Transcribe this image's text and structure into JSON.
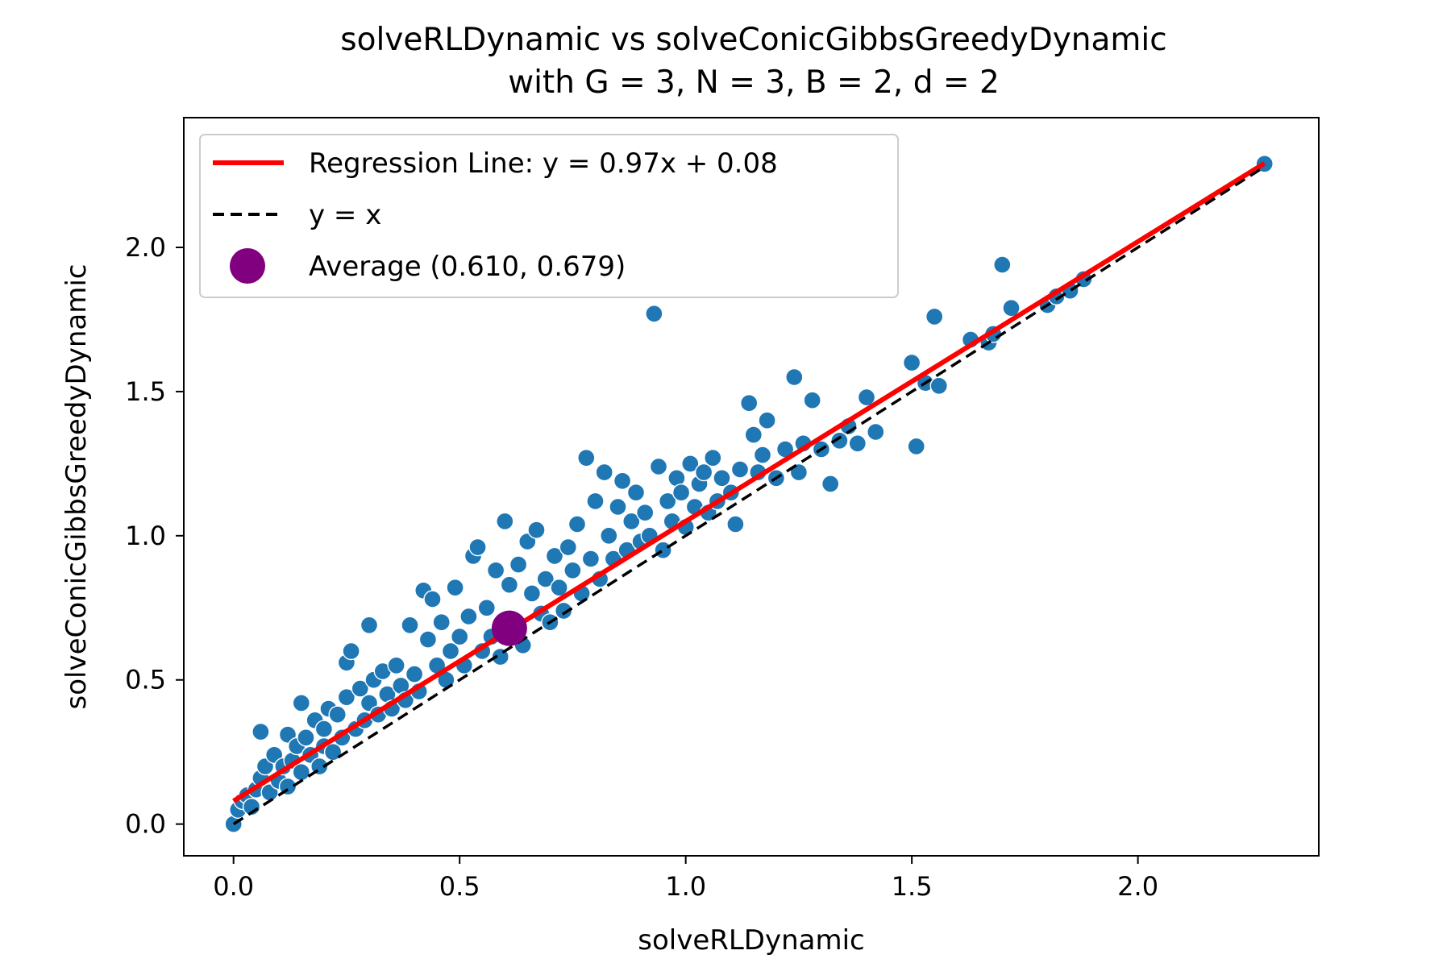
{
  "chart_data": {
    "type": "scatter",
    "title_line1": "solveRLDynamic vs solveConicGibbsGreedyDynamic",
    "title_line2": "with G = 3, N = 3, B = 2, d = 2",
    "xlabel": "solveRLDynamic",
    "ylabel": "solveConicGibbsGreedyDynamic",
    "xlim": [
      -0.11,
      2.4
    ],
    "ylim": [
      -0.11,
      2.45
    ],
    "xticks": [
      0.0,
      0.5,
      1.0,
      1.5,
      2.0
    ],
    "yticks": [
      0.0,
      0.5,
      1.0,
      1.5,
      2.0
    ],
    "xtick_labels": [
      "0.0",
      "0.5",
      "1.0",
      "1.5",
      "2.0"
    ],
    "ytick_labels": [
      "0.0",
      "0.5",
      "1.0",
      "1.5",
      "2.0"
    ],
    "grid": false,
    "legend_placement": "upper-left",
    "legend": {
      "regression_label": "Regression Line: y = 0.97x + 0.08",
      "identity_label": "y = x",
      "average_label": "Average (0.610, 0.679)"
    },
    "regression": {
      "slope": 0.97,
      "intercept": 0.08,
      "x_range": [
        0.0,
        2.28
      ],
      "color": "#ff0000"
    },
    "identity": {
      "x_range": [
        0.0,
        2.28
      ],
      "color": "#000000"
    },
    "average": {
      "x": 0.61,
      "y": 0.679,
      "color": "#800080"
    },
    "scatter_color": "#1f77b4",
    "points": [
      [
        0.0,
        0.0
      ],
      [
        0.01,
        0.05
      ],
      [
        0.02,
        0.08
      ],
      [
        0.03,
        0.1
      ],
      [
        0.04,
        0.06
      ],
      [
        0.05,
        0.12
      ],
      [
        0.06,
        0.16
      ],
      [
        0.06,
        0.32
      ],
      [
        0.07,
        0.2
      ],
      [
        0.08,
        0.11
      ],
      [
        0.09,
        0.24
      ],
      [
        0.1,
        0.15
      ],
      [
        0.11,
        0.2
      ],
      [
        0.12,
        0.31
      ],
      [
        0.12,
        0.13
      ],
      [
        0.13,
        0.22
      ],
      [
        0.14,
        0.27
      ],
      [
        0.15,
        0.42
      ],
      [
        0.15,
        0.18
      ],
      [
        0.16,
        0.3
      ],
      [
        0.17,
        0.24
      ],
      [
        0.18,
        0.36
      ],
      [
        0.19,
        0.2
      ],
      [
        0.2,
        0.33
      ],
      [
        0.2,
        0.27
      ],
      [
        0.21,
        0.4
      ],
      [
        0.22,
        0.25
      ],
      [
        0.23,
        0.38
      ],
      [
        0.24,
        0.3
      ],
      [
        0.25,
        0.56
      ],
      [
        0.25,
        0.44
      ],
      [
        0.26,
        0.6
      ],
      [
        0.27,
        0.33
      ],
      [
        0.28,
        0.47
      ],
      [
        0.29,
        0.36
      ],
      [
        0.3,
        0.69
      ],
      [
        0.3,
        0.42
      ],
      [
        0.31,
        0.5
      ],
      [
        0.32,
        0.38
      ],
      [
        0.33,
        0.53
      ],
      [
        0.34,
        0.45
      ],
      [
        0.35,
        0.4
      ],
      [
        0.36,
        0.55
      ],
      [
        0.37,
        0.48
      ],
      [
        0.38,
        0.43
      ],
      [
        0.39,
        0.69
      ],
      [
        0.4,
        0.52
      ],
      [
        0.41,
        0.46
      ],
      [
        0.42,
        0.81
      ],
      [
        0.43,
        0.64
      ],
      [
        0.44,
        0.78
      ],
      [
        0.45,
        0.55
      ],
      [
        0.46,
        0.7
      ],
      [
        0.47,
        0.5
      ],
      [
        0.48,
        0.6
      ],
      [
        0.49,
        0.82
      ],
      [
        0.5,
        0.65
      ],
      [
        0.51,
        0.55
      ],
      [
        0.52,
        0.72
      ],
      [
        0.53,
        0.93
      ],
      [
        0.54,
        0.96
      ],
      [
        0.55,
        0.6
      ],
      [
        0.56,
        0.75
      ],
      [
        0.57,
        0.65
      ],
      [
        0.58,
        0.88
      ],
      [
        0.59,
        0.58
      ],
      [
        0.6,
        1.05
      ],
      [
        0.61,
        0.83
      ],
      [
        0.62,
        0.7
      ],
      [
        0.63,
        0.9
      ],
      [
        0.64,
        0.62
      ],
      [
        0.65,
        0.98
      ],
      [
        0.66,
        0.8
      ],
      [
        0.67,
        1.02
      ],
      [
        0.68,
        0.73
      ],
      [
        0.69,
        0.85
      ],
      [
        0.7,
        0.7
      ],
      [
        0.71,
        0.93
      ],
      [
        0.72,
        0.82
      ],
      [
        0.73,
        0.74
      ],
      [
        0.74,
        0.96
      ],
      [
        0.75,
        0.88
      ],
      [
        0.76,
        1.04
      ],
      [
        0.77,
        0.8
      ],
      [
        0.78,
        1.27
      ],
      [
        0.79,
        0.92
      ],
      [
        0.8,
        1.12
      ],
      [
        0.81,
        0.85
      ],
      [
        0.82,
        1.22
      ],
      [
        0.83,
        1.0
      ],
      [
        0.84,
        0.92
      ],
      [
        0.85,
        1.1
      ],
      [
        0.86,
        1.19
      ],
      [
        0.87,
        0.95
      ],
      [
        0.88,
        1.05
      ],
      [
        0.89,
        1.15
      ],
      [
        0.9,
        0.98
      ],
      [
        0.91,
        1.08
      ],
      [
        0.92,
        1.0
      ],
      [
        0.93,
        1.77
      ],
      [
        0.94,
        1.24
      ],
      [
        0.95,
        0.95
      ],
      [
        0.96,
        1.12
      ],
      [
        0.97,
        1.05
      ],
      [
        0.98,
        1.2
      ],
      [
        0.99,
        1.15
      ],
      [
        1.0,
        1.03
      ],
      [
        1.01,
        1.25
      ],
      [
        1.02,
        1.1
      ],
      [
        1.03,
        1.18
      ],
      [
        1.04,
        1.22
      ],
      [
        1.05,
        1.08
      ],
      [
        1.06,
        1.27
      ],
      [
        1.07,
        1.12
      ],
      [
        1.08,
        1.2
      ],
      [
        1.1,
        1.15
      ],
      [
        1.11,
        1.04
      ],
      [
        1.12,
        1.23
      ],
      [
        1.14,
        1.46
      ],
      [
        1.15,
        1.35
      ],
      [
        1.16,
        1.22
      ],
      [
        1.17,
        1.28
      ],
      [
        1.18,
        1.4
      ],
      [
        1.2,
        1.2
      ],
      [
        1.22,
        1.3
      ],
      [
        1.24,
        1.55
      ],
      [
        1.25,
        1.22
      ],
      [
        1.26,
        1.32
      ],
      [
        1.28,
        1.47
      ],
      [
        1.3,
        1.3
      ],
      [
        1.32,
        1.18
      ],
      [
        1.34,
        1.33
      ],
      [
        1.36,
        1.38
      ],
      [
        1.38,
        1.32
      ],
      [
        1.4,
        1.48
      ],
      [
        1.42,
        1.36
      ],
      [
        1.5,
        1.6
      ],
      [
        1.51,
        1.31
      ],
      [
        1.53,
        1.53
      ],
      [
        1.55,
        1.76
      ],
      [
        1.56,
        1.52
      ],
      [
        1.63,
        1.68
      ],
      [
        1.67,
        1.67
      ],
      [
        1.68,
        1.7
      ],
      [
        1.7,
        1.94
      ],
      [
        1.72,
        1.79
      ],
      [
        1.8,
        1.8
      ],
      [
        1.82,
        1.83
      ],
      [
        1.85,
        1.85
      ],
      [
        1.88,
        1.89
      ],
      [
        2.28,
        2.29
      ]
    ]
  }
}
